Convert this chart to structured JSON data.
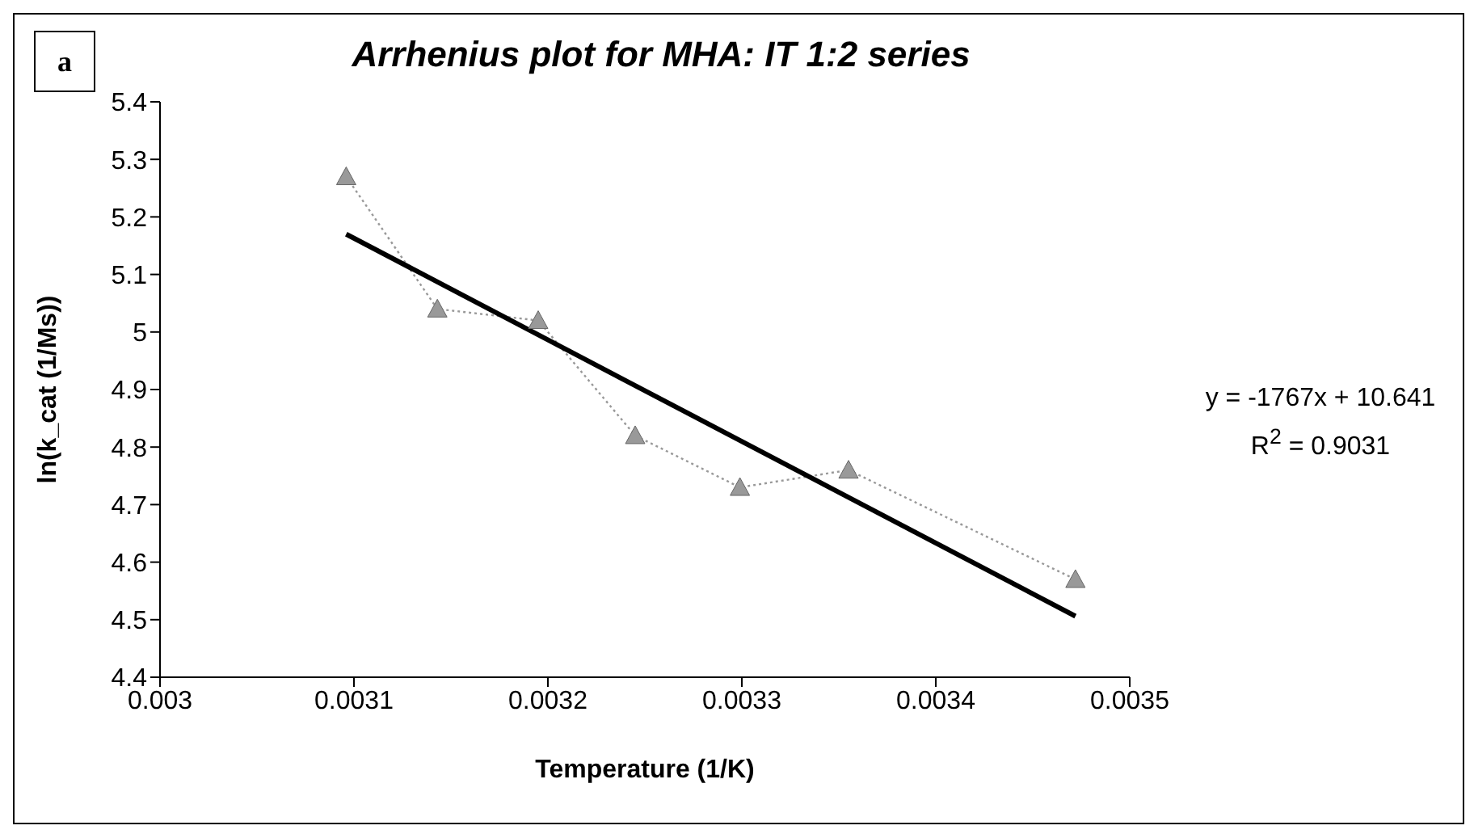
{
  "chart_data": {
    "type": "line",
    "title": "Arrhenius plot for MHA: IT 1:2 series",
    "xlabel": "Temperature (1/K)",
    "ylabel": "ln(k_cat  (1/Ms))",
    "annotations": [
      "a",
      "y = -1767x + 10.641",
      "R$^{2}$ = 0.9031"
    ],
    "x": [
      0.003096,
      0.003143,
      0.003195,
      0.003245,
      0.003299,
      0.003355,
      0.003472
    ],
    "series": [
      {
        "color": "#999999",
        "values": [
          5.27,
          5.04,
          5.02,
          4.82,
          4.73,
          4.76,
          4.57
        ],
        "marker": "triangle",
        "line_style": "dotted"
      },
      {
        "color": "#000000",
        "x": [
          0.003096,
          0.003472
        ],
        "values": [
          5.17,
          4.506
        ],
        "marker": "none",
        "line_style": "solid"
      }
    ],
    "xlim": [
      0.003,
      0.0035
    ],
    "xticks": [
      0.003,
      0.0031,
      0.0032,
      0.0033,
      0.0034,
      0.0035
    ],
    "ylim": [
      4.4,
      5.4
    ],
    "yticks": [
      4.4,
      4.5,
      4.6,
      4.7,
      4.8,
      4.9,
      5,
      5.1,
      5.2,
      5.3,
      5.4
    ],
    "grid": false,
    "legend": false
  }
}
